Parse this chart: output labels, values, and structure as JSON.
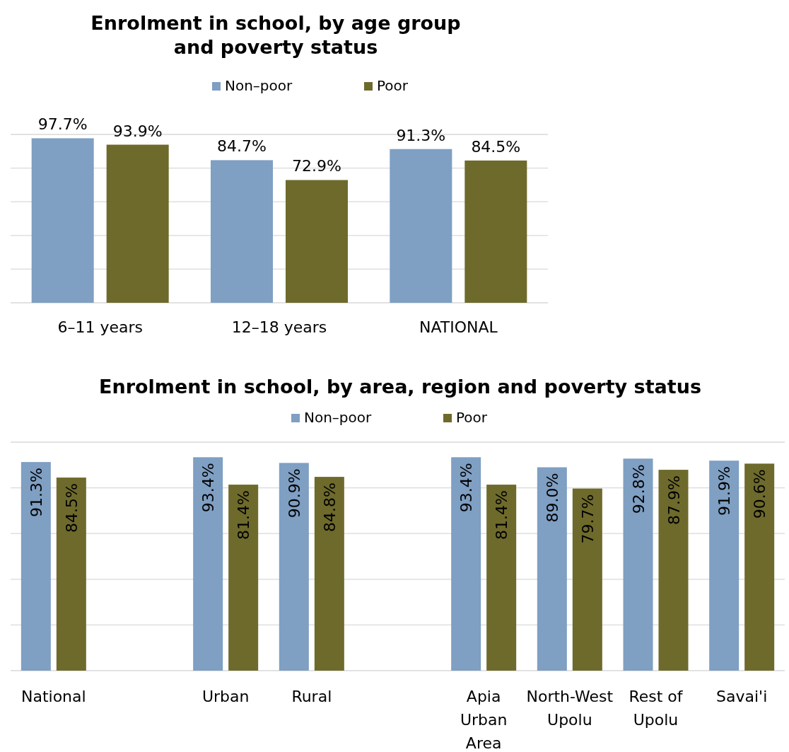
{
  "chart_data": [
    {
      "type": "bar",
      "title": "Enrolment in school, by age group and poverty status",
      "categories": [
        "6–11 years",
        "12–18 years",
        "NATIONAL"
      ],
      "series": [
        {
          "name": "Non–poor",
          "color": "#7f9fc3",
          "values": [
            97.7,
            84.7,
            91.3
          ],
          "value_labels": [
            "97.7%",
            "84.7%",
            "91.3%"
          ]
        },
        {
          "name": "Poor",
          "color": "#6e6a2c",
          "values": [
            93.9,
            72.9,
            84.5
          ],
          "value_labels": [
            "93.9%",
            "72.9%",
            "84.5%"
          ]
        }
      ],
      "tick_labels": "x",
      "grid": "y",
      "legend": "top"
    },
    {
      "type": "bar",
      "title": "Enrolment in school, by area, region and poverty status",
      "categories": [
        "National",
        null,
        "Urban",
        "Rural",
        null,
        "Apia Urban Area",
        "North-West Upolu",
        "Rest of Upolu",
        "Savai'i"
      ],
      "series": [
        {
          "name": "Non–poor",
          "color": "#7f9fc3",
          "values": [
            91.3,
            null,
            93.4,
            90.9,
            null,
            93.4,
            89.0,
            92.8,
            91.9
          ],
          "value_labels": [
            "91.3%",
            null,
            "93.4%",
            "90.9%",
            null,
            "93.4%",
            "89.0%",
            "92.8%",
            "91.9%"
          ]
        },
        {
          "name": "Poor",
          "color": "#6e6a2c",
          "values": [
            84.5,
            null,
            81.4,
            84.8,
            null,
            81.4,
            79.7,
            87.9,
            90.6
          ],
          "value_labels": [
            "84.5%",
            null,
            "81.4%",
            "84.8%",
            null,
            "81.4%",
            "79.7%",
            "87.9%",
            "90.6%"
          ]
        }
      ],
      "tick_labels": "x",
      "grid": "y",
      "legend": "top"
    }
  ]
}
